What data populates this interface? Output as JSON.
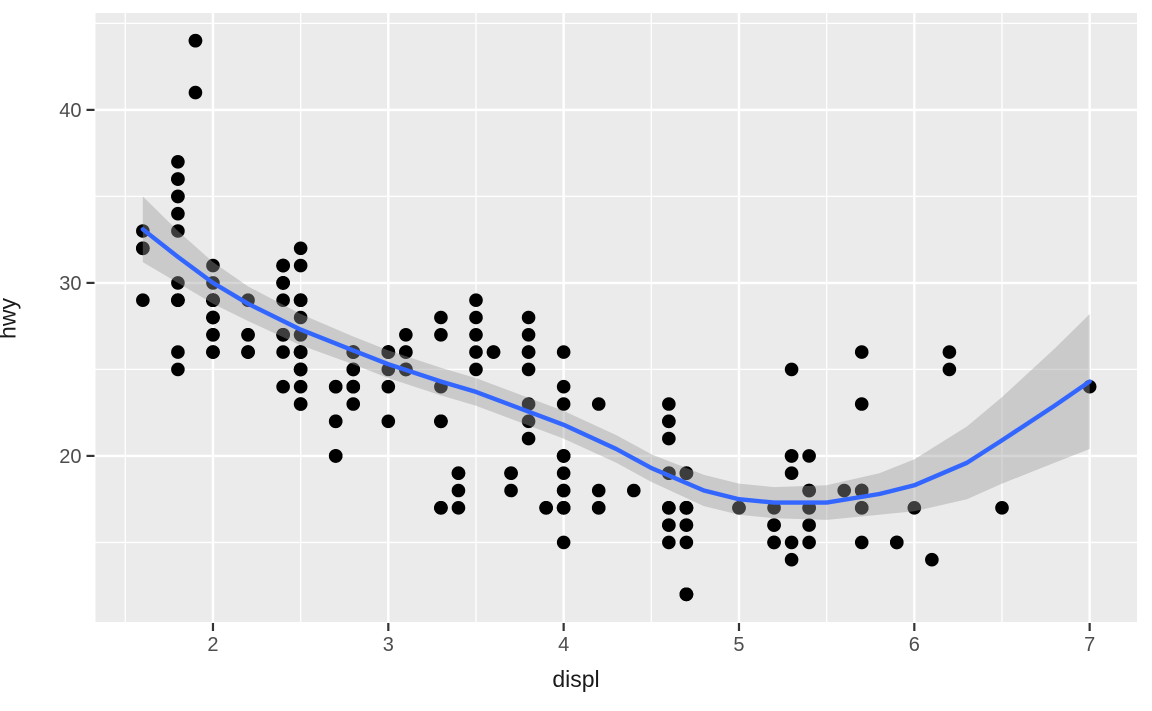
{
  "chart_data": {
    "type": "scatter",
    "title": "",
    "xlabel": "displ",
    "ylabel": "hwy",
    "x_ticks": [
      2,
      3,
      4,
      5,
      6,
      7
    ],
    "y_ticks": [
      20,
      30,
      40
    ],
    "x_minor": [
      1.5,
      2.5,
      3.5,
      4.5,
      5.5,
      6.5
    ],
    "y_minor": [
      15,
      25,
      35,
      45
    ],
    "xlim": [
      1.33,
      7.27
    ],
    "ylim": [
      10.4,
      45.6
    ],
    "grid": true,
    "legend": "none",
    "panel_bg": "#EBEBEB",
    "grid_color": "#FFFFFF",
    "point_color": "#000000",
    "smooth_color": "#3366FF",
    "ribbon_color": "#999999",
    "ribbon_opacity": 0.4,
    "tick_color": "#333333",
    "tick_label_color": "#4D4D4D",
    "points": [
      [
        1.8,
        29
      ],
      [
        1.8,
        29
      ],
      [
        2,
        31
      ],
      [
        2,
        30
      ],
      [
        2.8,
        26
      ],
      [
        2.8,
        26
      ],
      [
        3.1,
        27
      ],
      [
        1.8,
        26
      ],
      [
        1.8,
        25
      ],
      [
        2,
        28
      ],
      [
        2,
        27
      ],
      [
        2.8,
        25
      ],
      [
        2.8,
        25
      ],
      [
        3.1,
        25
      ],
      [
        3.1,
        25
      ],
      [
        2.8,
        24
      ],
      [
        3.1,
        25
      ],
      [
        4.2,
        23
      ],
      [
        5.3,
        20
      ],
      [
        5.3,
        15
      ],
      [
        5.3,
        20
      ],
      [
        5.7,
        17
      ],
      [
        6,
        17
      ],
      [
        5.7,
        26
      ],
      [
        5.7,
        23
      ],
      [
        6.2,
        26
      ],
      [
        6.2,
        25
      ],
      [
        7,
        24
      ],
      [
        5.3,
        19
      ],
      [
        5.3,
        14
      ],
      [
        5.7,
        15
      ],
      [
        6.5,
        17
      ],
      [
        2.4,
        27
      ],
      [
        2.4,
        30
      ],
      [
        3.1,
        26
      ],
      [
        3.5,
        29
      ],
      [
        3.6,
        26
      ],
      [
        2.4,
        24
      ],
      [
        3,
        24
      ],
      [
        3.3,
        22
      ],
      [
        3.3,
        22
      ],
      [
        3.3,
        24
      ],
      [
        3.3,
        17
      ],
      [
        3.8,
        22
      ],
      [
        3.8,
        21
      ],
      [
        3.8,
        23
      ],
      [
        4,
        23
      ],
      [
        3.3,
        22
      ],
      [
        3.7,
        19
      ],
      [
        3.7,
        18
      ],
      [
        3.9,
        17
      ],
      [
        3.9,
        17
      ],
      [
        4.7,
        19
      ],
      [
        4.7,
        19
      ],
      [
        4.7,
        12
      ],
      [
        5.2,
        17
      ],
      [
        5.2,
        15
      ],
      [
        3.9,
        17
      ],
      [
        4.7,
        17
      ],
      [
        4.7,
        12
      ],
      [
        4.7,
        16
      ],
      [
        5.2,
        16
      ],
      [
        5.7,
        18
      ],
      [
        5.9,
        15
      ],
      [
        4.7,
        12
      ],
      [
        4.7,
        17
      ],
      [
        4.7,
        16
      ],
      [
        4.7,
        17
      ],
      [
        4.7,
        15
      ],
      [
        4.7,
        12
      ],
      [
        5.2,
        16
      ],
      [
        5.2,
        15
      ],
      [
        5.7,
        17
      ],
      [
        5.9,
        15
      ],
      [
        4.6,
        17
      ],
      [
        4.6,
        17
      ],
      [
        5.4,
        18
      ],
      [
        4,
        17
      ],
      [
        4,
        17
      ],
      [
        4,
        17
      ],
      [
        4,
        18
      ],
      [
        4.6,
        19
      ],
      [
        5,
        17
      ],
      [
        4.2,
        17
      ],
      [
        4.2,
        17
      ],
      [
        4.6,
        16
      ],
      [
        4.6,
        16
      ],
      [
        4.6,
        17
      ],
      [
        5.4,
        15
      ],
      [
        5.4,
        17
      ],
      [
        3.8,
        26
      ],
      [
        3.8,
        25
      ],
      [
        4,
        26
      ],
      [
        4,
        24
      ],
      [
        4.6,
        21
      ],
      [
        4.6,
        22
      ],
      [
        4.6,
        23
      ],
      [
        4.6,
        22
      ],
      [
        5.4,
        20
      ],
      [
        1.6,
        33
      ],
      [
        1.6,
        32
      ],
      [
        1.6,
        32
      ],
      [
        1.6,
        29
      ],
      [
        1.6,
        32
      ],
      [
        1.8,
        34
      ],
      [
        1.8,
        36
      ],
      [
        1.8,
        36
      ],
      [
        2,
        29
      ],
      [
        2.4,
        26
      ],
      [
        2.4,
        27
      ],
      [
        2.4,
        30
      ],
      [
        2.4,
        31
      ],
      [
        2.5,
        26
      ],
      [
        2.5,
        26
      ],
      [
        3.3,
        28
      ],
      [
        2,
        26
      ],
      [
        2,
        27
      ],
      [
        2,
        28
      ],
      [
        2,
        26
      ],
      [
        2,
        29
      ],
      [
        2.7,
        24
      ],
      [
        2.7,
        24
      ],
      [
        3,
        22
      ],
      [
        3.7,
        19
      ],
      [
        4,
        20
      ],
      [
        4.7,
        19
      ],
      [
        4.7,
        17
      ],
      [
        4.7,
        12
      ],
      [
        5.7,
        18
      ],
      [
        6.1,
        14
      ],
      [
        4,
        15
      ],
      [
        4.2,
        18
      ],
      [
        4.4,
        18
      ],
      [
        4.6,
        15
      ],
      [
        5.4,
        17
      ],
      [
        5.4,
        16
      ],
      [
        5.4,
        18
      ],
      [
        4,
        17
      ],
      [
        4,
        19
      ],
      [
        4.6,
        19
      ],
      [
        5,
        17
      ],
      [
        2.4,
        29
      ],
      [
        2.4,
        27
      ],
      [
        2.5,
        31
      ],
      [
        2.5,
        32
      ],
      [
        3.5,
        27
      ],
      [
        3.5,
        25
      ],
      [
        3,
        26
      ],
      [
        3,
        25
      ],
      [
        3.5,
        26
      ],
      [
        3.3,
        17
      ],
      [
        3.3,
        17
      ],
      [
        4,
        20
      ],
      [
        5.6,
        18
      ],
      [
        3.1,
        26
      ],
      [
        3.8,
        26
      ],
      [
        3.8,
        27
      ],
      [
        3.8,
        28
      ],
      [
        5.3,
        25
      ],
      [
        2.5,
        25
      ],
      [
        2.5,
        24
      ],
      [
        2.5,
        27
      ],
      [
        2.5,
        25
      ],
      [
        2.5,
        26
      ],
      [
        2.5,
        23
      ],
      [
        2.2,
        26
      ],
      [
        2.2,
        26
      ],
      [
        2.5,
        25
      ],
      [
        2.5,
        23
      ],
      [
        2.5,
        27
      ],
      [
        2.5,
        26
      ],
      [
        2.5,
        25
      ],
      [
        2.5,
        26
      ],
      [
        2.7,
        20
      ],
      [
        2.7,
        20
      ],
      [
        3.4,
        19
      ],
      [
        3.4,
        17
      ],
      [
        4,
        20
      ],
      [
        4.7,
        17
      ],
      [
        2.2,
        29
      ],
      [
        2.2,
        27
      ],
      [
        2.4,
        30
      ],
      [
        2.4,
        31
      ],
      [
        3,
        26
      ],
      [
        3,
        26
      ],
      [
        3.5,
        28
      ],
      [
        2.2,
        26
      ],
      [
        2.2,
        27
      ],
      [
        2.4,
        30
      ],
      [
        2.4,
        31
      ],
      [
        3,
        26
      ],
      [
        3,
        26
      ],
      [
        3.3,
        27
      ],
      [
        1.8,
        30
      ],
      [
        1.8,
        33
      ],
      [
        1.8,
        35
      ],
      [
        1.8,
        35
      ],
      [
        1.8,
        37
      ],
      [
        4.7,
        17
      ],
      [
        5.7,
        18
      ],
      [
        2.7,
        20
      ],
      [
        2.7,
        22
      ],
      [
        2.7,
        22
      ],
      [
        3.4,
        19
      ],
      [
        3.4,
        18
      ],
      [
        4,
        20
      ],
      [
        4,
        18
      ],
      [
        2,
        29
      ],
      [
        2,
        29
      ],
      [
        2,
        29
      ],
      [
        2,
        29
      ],
      [
        2.8,
        24
      ],
      [
        1.9,
        44
      ],
      [
        2,
        29
      ],
      [
        2,
        29
      ],
      [
        2,
        29
      ],
      [
        2,
        29
      ],
      [
        2.5,
        29
      ],
      [
        2.5,
        29
      ],
      [
        2.8,
        23
      ],
      [
        2.8,
        24
      ],
      [
        1.9,
        44
      ],
      [
        1.9,
        41
      ],
      [
        2,
        29
      ],
      [
        2,
        26
      ],
      [
        2.5,
        28
      ],
      [
        2.5,
        29
      ],
      [
        1.8,
        29
      ],
      [
        1.8,
        29
      ],
      [
        2,
        28
      ],
      [
        2,
        29
      ],
      [
        2.8,
        26
      ],
      [
        2.8,
        26
      ],
      [
        3.6,
        26
      ]
    ],
    "smooth": {
      "method": "loess",
      "x": [
        1.6,
        1.8,
        2.0,
        2.2,
        2.5,
        2.8,
        3.0,
        3.3,
        3.5,
        4.0,
        4.3,
        4.5,
        4.8,
        5.0,
        5.2,
        5.5,
        5.8,
        6.0,
        6.3,
        6.5,
        6.8,
        7.0
      ],
      "fit": [
        33.1,
        31.5,
        30.0,
        28.8,
        27.3,
        26.1,
        25.3,
        24.3,
        23.7,
        21.8,
        20.4,
        19.3,
        18.0,
        17.5,
        17.3,
        17.3,
        17.8,
        18.3,
        19.6,
        20.9,
        22.9,
        24.3
      ],
      "lower": [
        31.2,
        30.0,
        28.8,
        27.8,
        26.4,
        25.3,
        24.5,
        23.5,
        22.9,
        21.0,
        19.6,
        18.5,
        17.1,
        16.6,
        16.4,
        16.3,
        16.6,
        16.8,
        17.5,
        18.4,
        19.6,
        20.4
      ],
      "upper": [
        35.0,
        33.0,
        31.2,
        29.8,
        28.2,
        26.9,
        26.1,
        25.1,
        24.5,
        22.6,
        21.2,
        20.1,
        18.9,
        18.4,
        18.2,
        18.3,
        19.0,
        19.8,
        21.7,
        23.4,
        26.2,
        28.2
      ]
    }
  }
}
